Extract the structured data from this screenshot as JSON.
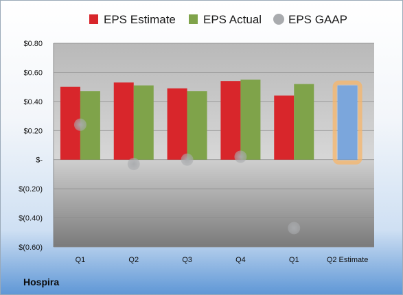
{
  "company": "Hospira",
  "chart_data": {
    "type": "bar",
    "categories": [
      "Q1",
      "Q2",
      "Q3",
      "Q4",
      "Q1",
      "Q2 Estimate"
    ],
    "series": [
      {
        "name": "EPS Estimate",
        "color": "#d8262b",
        "values": [
          0.5,
          0.53,
          0.49,
          0.54,
          0.44,
          null
        ]
      },
      {
        "name": "EPS Actual",
        "color": "#7fa34a",
        "values": [
          0.47,
          0.51,
          0.47,
          0.55,
          0.52,
          null
        ]
      },
      {
        "name": "EPS Estimate (Q2)",
        "color": "#7ba6dc",
        "highlight": "#f7b56a",
        "values": [
          null,
          null,
          null,
          null,
          null,
          0.51
        ]
      }
    ],
    "gaap": {
      "name": "EPS GAAP",
      "color": "#a9abae",
      "values": [
        0.24,
        -0.03,
        0.0,
        0.02,
        -0.47,
        null
      ]
    },
    "legend": [
      "EPS Estimate",
      "EPS Actual",
      "EPS GAAP"
    ],
    "legend_position": "top",
    "ylim": [
      -0.6,
      0.8
    ],
    "yticks": [
      {
        "v": 0.8,
        "label": "$0.80"
      },
      {
        "v": 0.6,
        "label": "$0.60"
      },
      {
        "v": 0.4,
        "label": "$0.40"
      },
      {
        "v": 0.2,
        "label": "$0.20"
      },
      {
        "v": 0.0,
        "label": "$-"
      },
      {
        "v": -0.2,
        "label": "$(0.20)"
      },
      {
        "v": -0.4,
        "label": "$(0.40)"
      },
      {
        "v": -0.6,
        "label": "$(0.60)"
      }
    ],
    "grid": true
  }
}
